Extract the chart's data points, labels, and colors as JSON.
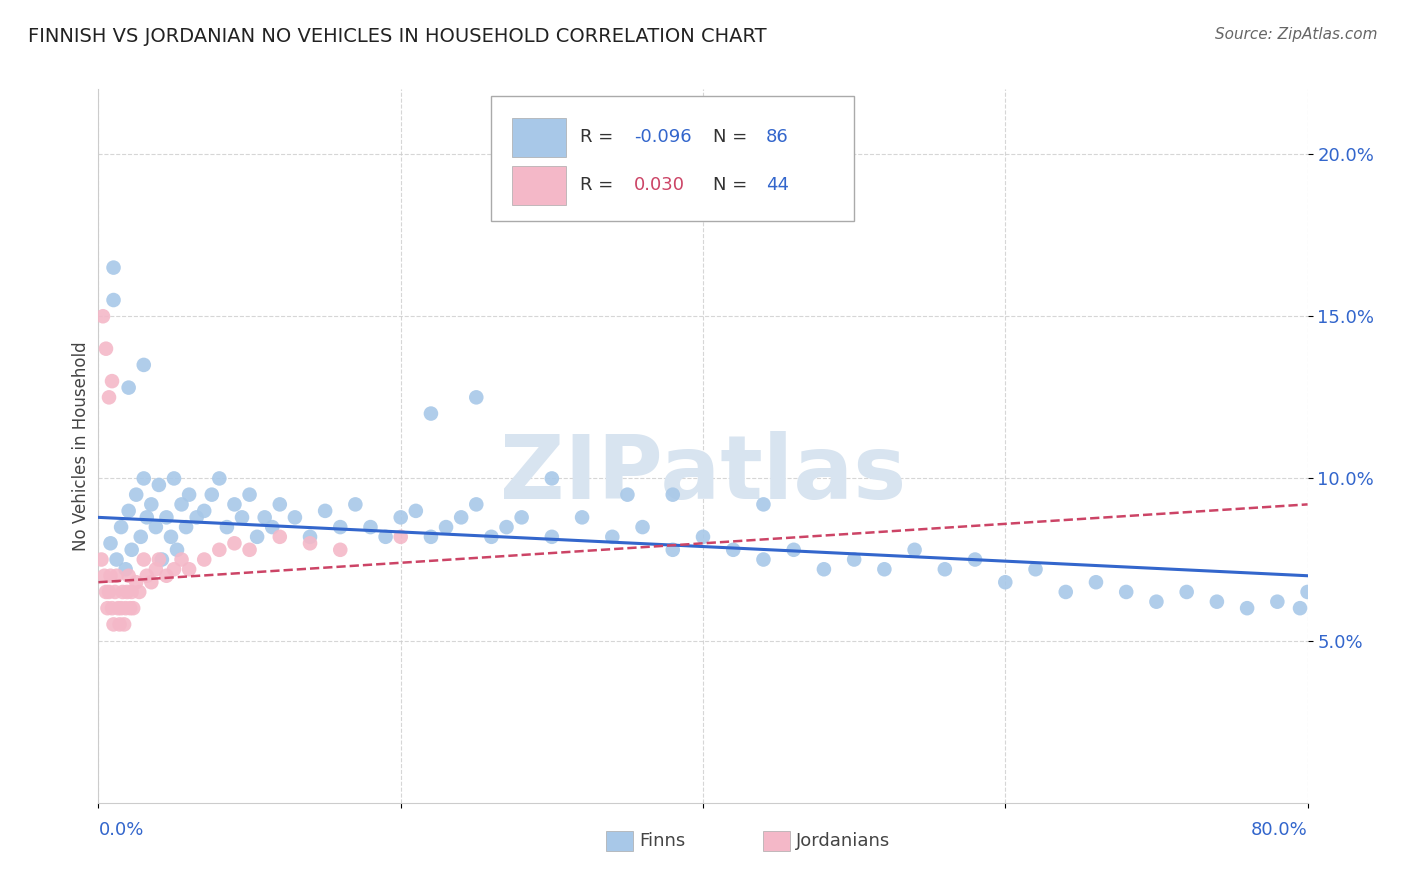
{
  "title": "FINNISH VS JORDANIAN NO VEHICLES IN HOUSEHOLD CORRELATION CHART",
  "source": "Source: ZipAtlas.com",
  "ylabel": "No Vehicles in Household",
  "xlim": [
    0.0,
    0.8
  ],
  "ylim": [
    0.0,
    0.22
  ],
  "finn_R": -0.096,
  "finn_N": 86,
  "jordan_R": 0.03,
  "jordan_N": 44,
  "finn_color": "#a8c8e8",
  "jordan_color": "#f4b8c8",
  "finn_line_color": "#3366cc",
  "jordan_line_color": "#cc4466",
  "watermark_color": "#d8e4f0",
  "finn_x": [
    0.008,
    0.012,
    0.015,
    0.018,
    0.02,
    0.022,
    0.025,
    0.028,
    0.03,
    0.032,
    0.035,
    0.038,
    0.04,
    0.042,
    0.045,
    0.048,
    0.05,
    0.052,
    0.055,
    0.058,
    0.06,
    0.065,
    0.07,
    0.075,
    0.08,
    0.085,
    0.09,
    0.095,
    0.1,
    0.105,
    0.11,
    0.115,
    0.12,
    0.13,
    0.14,
    0.15,
    0.16,
    0.17,
    0.18,
    0.19,
    0.2,
    0.21,
    0.22,
    0.23,
    0.24,
    0.25,
    0.26,
    0.27,
    0.28,
    0.3,
    0.32,
    0.34,
    0.36,
    0.38,
    0.4,
    0.42,
    0.44,
    0.46,
    0.48,
    0.5,
    0.52,
    0.54,
    0.56,
    0.58,
    0.6,
    0.62,
    0.64,
    0.66,
    0.68,
    0.7,
    0.72,
    0.74,
    0.76,
    0.78,
    0.795,
    0.8,
    0.03,
    0.01,
    0.01,
    0.02,
    0.22,
    0.25,
    0.3,
    0.35,
    0.38,
    0.44
  ],
  "finn_y": [
    0.08,
    0.075,
    0.085,
    0.072,
    0.09,
    0.078,
    0.095,
    0.082,
    0.1,
    0.088,
    0.092,
    0.085,
    0.098,
    0.075,
    0.088,
    0.082,
    0.1,
    0.078,
    0.092,
    0.085,
    0.095,
    0.088,
    0.09,
    0.095,
    0.1,
    0.085,
    0.092,
    0.088,
    0.095,
    0.082,
    0.088,
    0.085,
    0.092,
    0.088,
    0.082,
    0.09,
    0.085,
    0.092,
    0.085,
    0.082,
    0.088,
    0.09,
    0.082,
    0.085,
    0.088,
    0.092,
    0.082,
    0.085,
    0.088,
    0.082,
    0.088,
    0.082,
    0.085,
    0.078,
    0.082,
    0.078,
    0.075,
    0.078,
    0.072,
    0.075,
    0.072,
    0.078,
    0.072,
    0.075,
    0.068,
    0.072,
    0.065,
    0.068,
    0.065,
    0.062,
    0.065,
    0.062,
    0.06,
    0.062,
    0.06,
    0.065,
    0.135,
    0.165,
    0.155,
    0.128,
    0.12,
    0.125,
    0.1,
    0.095,
    0.095,
    0.092
  ],
  "jordan_x": [
    0.002,
    0.004,
    0.005,
    0.006,
    0.007,
    0.008,
    0.009,
    0.01,
    0.011,
    0.012,
    0.013,
    0.014,
    0.015,
    0.016,
    0.017,
    0.018,
    0.019,
    0.02,
    0.021,
    0.022,
    0.023,
    0.025,
    0.027,
    0.03,
    0.032,
    0.035,
    0.038,
    0.04,
    0.045,
    0.05,
    0.055,
    0.06,
    0.07,
    0.08,
    0.09,
    0.1,
    0.12,
    0.14,
    0.16,
    0.2,
    0.003,
    0.005,
    0.007,
    0.009
  ],
  "jordan_y": [
    0.075,
    0.07,
    0.065,
    0.06,
    0.065,
    0.07,
    0.06,
    0.055,
    0.065,
    0.07,
    0.06,
    0.055,
    0.06,
    0.065,
    0.055,
    0.06,
    0.065,
    0.07,
    0.06,
    0.065,
    0.06,
    0.068,
    0.065,
    0.075,
    0.07,
    0.068,
    0.072,
    0.075,
    0.07,
    0.072,
    0.075,
    0.072,
    0.075,
    0.078,
    0.08,
    0.078,
    0.082,
    0.08,
    0.078,
    0.082,
    0.15,
    0.14,
    0.125,
    0.13
  ],
  "finn_trend_x": [
    0.0,
    0.8
  ],
  "finn_trend_y": [
    0.088,
    0.07
  ],
  "jordan_trend_x": [
    0.0,
    0.8
  ],
  "jordan_trend_y": [
    0.068,
    0.092
  ]
}
